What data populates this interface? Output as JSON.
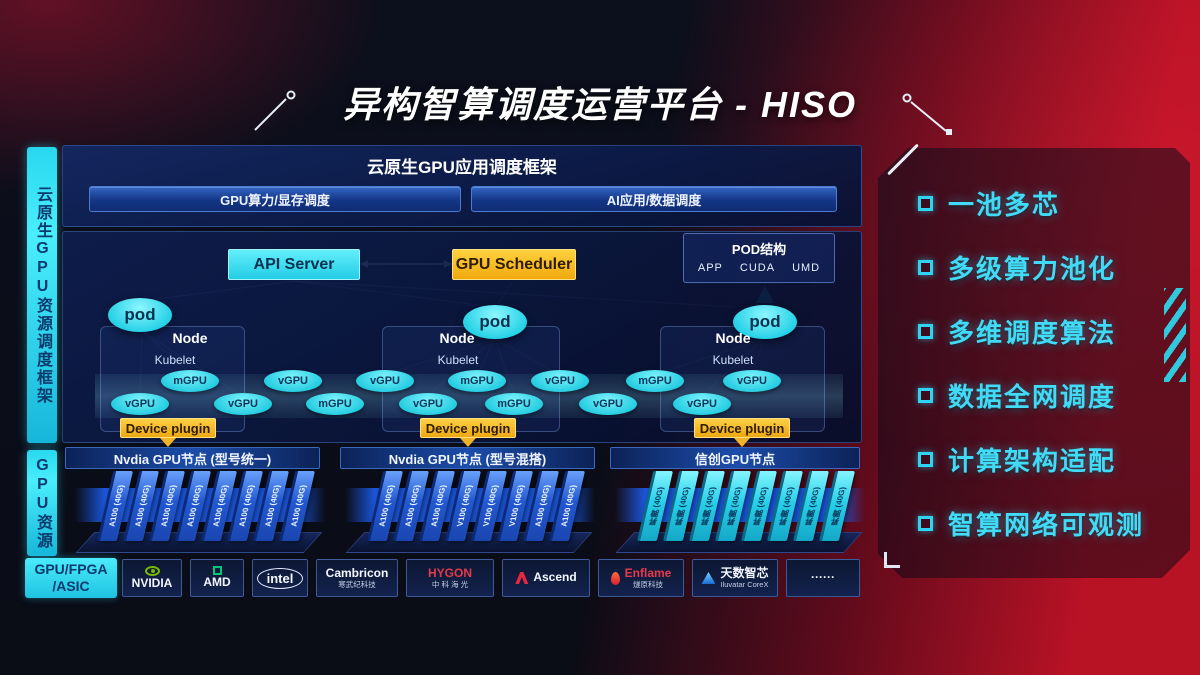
{
  "page": {
    "title": "异构智算调度运营平台 - HISO"
  },
  "sidebar": {
    "framework_label": "云原生GPU资源调度框架",
    "resource_label": "GPU资源"
  },
  "app_layer": {
    "title": "云原生GPU应用调度框架",
    "bars": [
      "GPU算力/显存调度",
      "AI应用/数据调度"
    ]
  },
  "control": {
    "api_server": "API Server",
    "gpu_scheduler": "GPU Scheduler",
    "pod_struct": {
      "title": "POD结构",
      "items": [
        "APP",
        "CUDA",
        "UMD"
      ]
    },
    "pod_label": "pod",
    "node_label": "Node",
    "kubelet_label": "Kubelet",
    "device_plugin_label": "Device plugin",
    "gpus": [
      "vGPU",
      "mGPU",
      "vGPU",
      "vGPU",
      "mGPU",
      "vGPU",
      "vGPU",
      "mGPU",
      "mGPU",
      "vGPU",
      "vGPU",
      "mGPU",
      "vGPU",
      "vGPU"
    ]
  },
  "gpu_pool": {
    "groups": [
      {
        "header": "Nvdia GPU节点 (型号统一)",
        "style": "blue",
        "cards": [
          "A100 (40G)",
          "A100 (40G)",
          "A100 (40G)",
          "A100 (40G)",
          "A100 (40G)",
          "A100 (40G)",
          "A100 (40G)",
          "A100 (40G)"
        ]
      },
      {
        "header": "Nvdia GPU节点 (型号混搭)",
        "style": "blue",
        "cards": [
          "A100 (40G)",
          "A100 (40G)",
          "A100 (40G)",
          "V100 (40G)",
          "V100 (40G)",
          "V100 (40G)",
          "A100 (40G)",
          "A100 (40G)"
        ]
      },
      {
        "header": "信创GPU节点",
        "style": "cyan",
        "cards": [
          "昇腾 (40G)",
          "昇腾 (40G)",
          "昇腾 (40G)",
          "昇腾 (40G)",
          "昇腾 (40G)",
          "昇腾 (40G)",
          "昇腾 (40G)",
          "昇腾 (40G)"
        ]
      }
    ]
  },
  "vendors": {
    "label_line1": "GPU/FPGA",
    "label_line2": "/ASIC",
    "logos": [
      {
        "icon": "nvidia-icon",
        "name": "NVIDIA",
        "sub": "",
        "name_color": "#f2f6ff"
      },
      {
        "icon": "amd-icon",
        "name": "AMD",
        "sub": "",
        "name_color": "#f2f6ff"
      },
      {
        "icon": "intel-icon",
        "name": "intel",
        "sub": "",
        "name_color": "#f4f8ff"
      },
      {
        "icon": "",
        "name": "Cambricon",
        "sub": "寒武纪科技",
        "name_color": "#f2f6ff"
      },
      {
        "icon": "",
        "name": "HYGON",
        "sub": "中 科 海 光",
        "name_color": "#e23b4a"
      },
      {
        "icon": "ascend-icon",
        "name": "Ascend",
        "sub": "",
        "name_color": "#f2f6ff"
      },
      {
        "icon": "enflame-icon",
        "name": "Enflame",
        "sub": "燧原科技",
        "name_color": "#e8394a"
      },
      {
        "icon": "iluvatar-icon",
        "name": "天数智芯",
        "sub": "Iluvatar CoreX",
        "name_color": "#f2f6ff"
      },
      {
        "icon": "",
        "name": "······",
        "sub": "",
        "name_color": "#f2f6ff"
      }
    ]
  },
  "features": {
    "items": [
      "一池多芯",
      "多级算力池化",
      "多维调度算法",
      "数据全网调度",
      "计算架构适配",
      "智算网络可观测"
    ],
    "accent_color": "#2fd4f2"
  }
}
